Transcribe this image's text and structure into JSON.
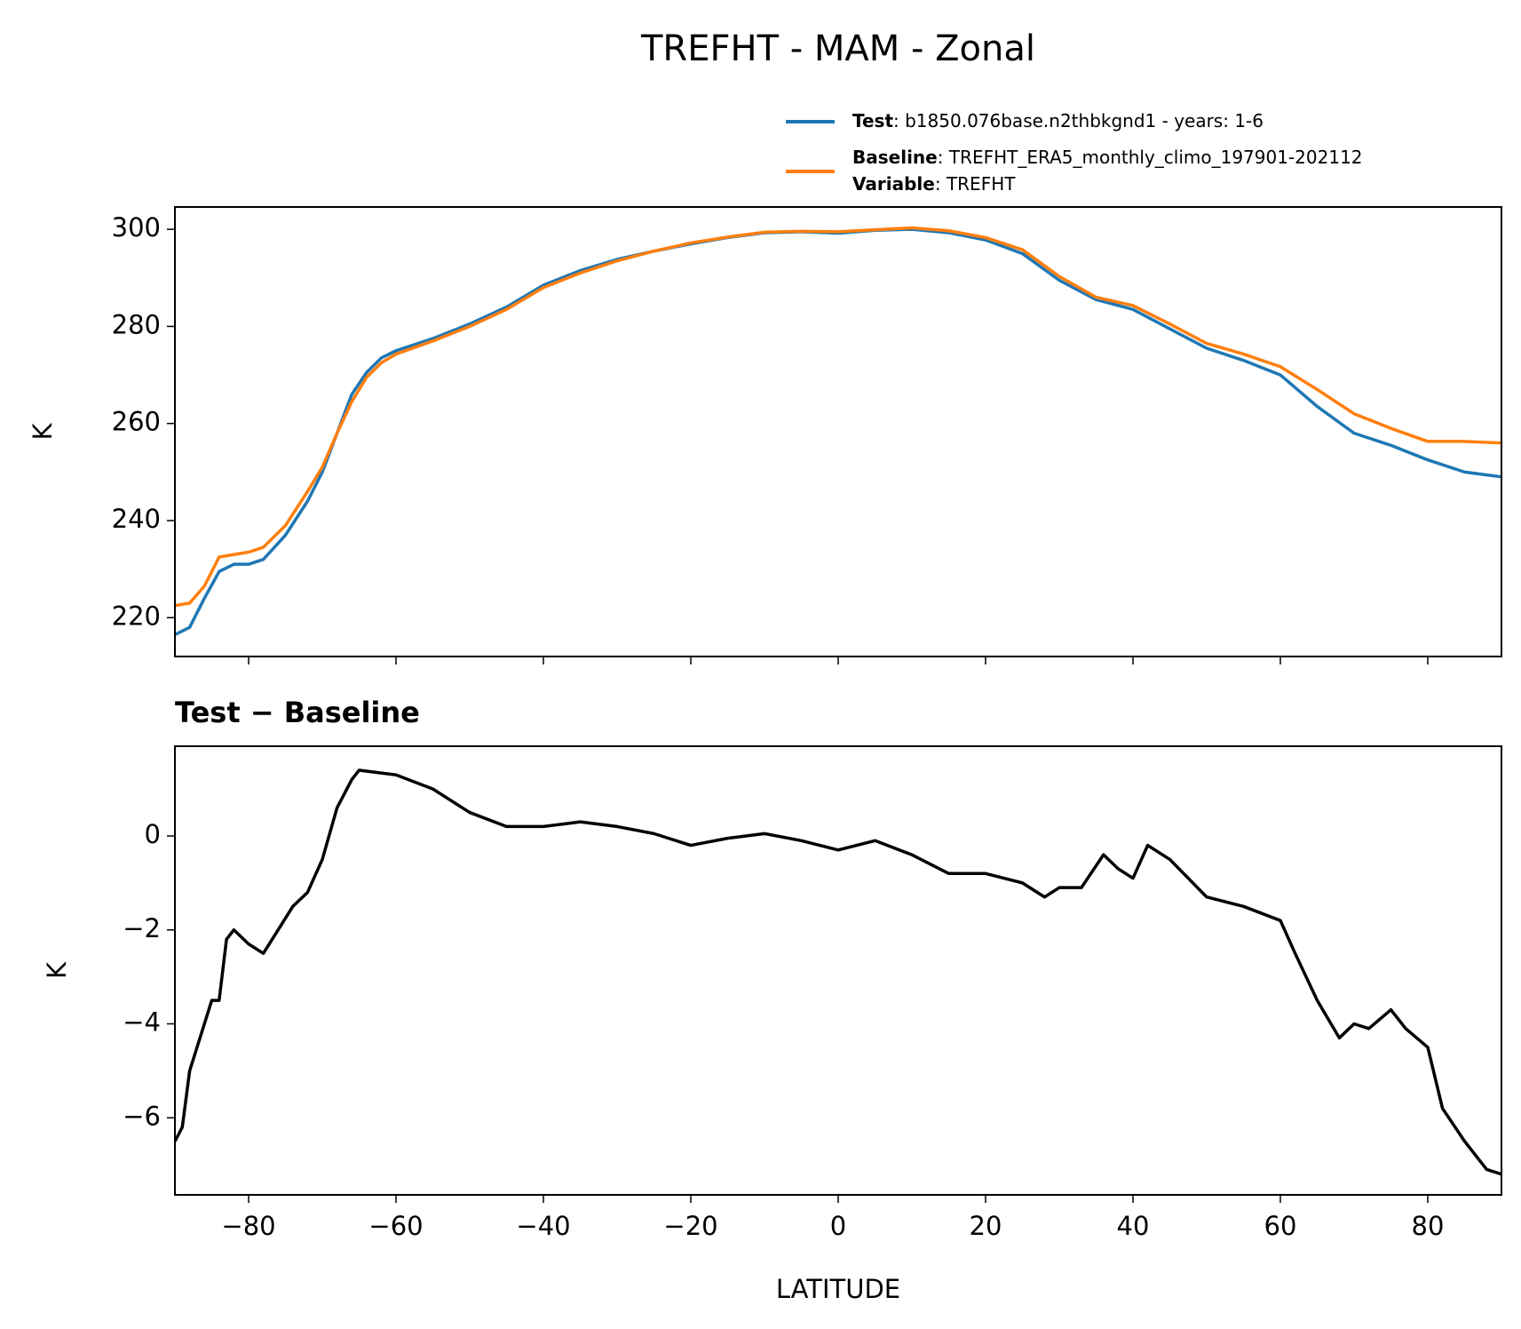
{
  "title": "TREFHT - MAM - Zonal",
  "chart_data": [
    {
      "type": "line",
      "ylabel": "K",
      "x": [
        -90,
        -88,
        -86,
        -84,
        -82,
        -80,
        -78,
        -75,
        -72,
        -70,
        -68,
        -66,
        -64,
        -62,
        -60,
        -55,
        -50,
        -45,
        -40,
        -35,
        -30,
        -25,
        -20,
        -15,
        -10,
        -5,
        0,
        5,
        10,
        15,
        20,
        25,
        30,
        35,
        40,
        45,
        50,
        55,
        60,
        65,
        70,
        75,
        80,
        85,
        90
      ],
      "series": [
        {
          "name": "Test",
          "detail": ": b1850.076base.n2thbkgnd1 - years: 1-6",
          "color": "#1f77b4",
          "values": [
            216.5,
            218,
            224,
            229.5,
            231,
            231,
            232,
            237,
            244,
            250,
            258,
            266,
            270.5,
            273.5,
            275,
            277.5,
            280.5,
            284,
            288.5,
            291.5,
            293.8,
            295.5,
            297,
            298.3,
            299.3,
            299.5,
            299.2,
            299.8,
            300,
            299.3,
            297.8,
            295,
            289.5,
            285.5,
            283.5,
            279.5,
            275.5,
            273,
            270,
            263.5,
            258,
            255.5,
            252.5,
            250,
            249
          ]
        },
        {
          "name": "Baseline",
          "detail": ": TREFHT_ERA5_monthly_climo_197901-202112",
          "color": "#ff7f0e",
          "values": [
            222.5,
            223,
            226.5,
            232.5,
            233,
            233.5,
            234.5,
            239,
            246,
            251,
            258,
            264.5,
            269.5,
            272.5,
            274.3,
            277,
            280,
            283.5,
            288,
            291,
            293.5,
            295.5,
            297.2,
            298.4,
            299.4,
            299.6,
            299.5,
            299.9,
            300.3,
            299.7,
            298.3,
            295.8,
            290.3,
            286,
            284.3,
            280.5,
            276.5,
            274.3,
            271.7,
            267,
            262,
            259,
            256.3,
            256.3,
            256
          ]
        }
      ],
      "legend_note": {
        "name": "Variable",
        "detail": ": TREFHT"
      },
      "xlim": [
        -90,
        90
      ],
      "ylim": [
        212,
        304.6
      ],
      "yticks": [
        220,
        240,
        260,
        280,
        300
      ]
    },
    {
      "type": "line",
      "title": "Test − Baseline",
      "xlabel": "LATITUDE",
      "ylabel": "K",
      "color": "#000000",
      "x": [
        -90,
        -89,
        -88,
        -86,
        -85,
        -84,
        -83,
        -82,
        -80,
        -78,
        -76,
        -74,
        -72,
        -70,
        -68,
        -66,
        -65,
        -60,
        -55,
        -50,
        -45,
        -40,
        -35,
        -30,
        -25,
        -20,
        -15,
        -10,
        -5,
        0,
        5,
        10,
        15,
        20,
        25,
        28,
        30,
        33,
        36,
        38,
        40,
        42,
        45,
        50,
        55,
        60,
        62,
        65,
        68,
        70,
        72,
        75,
        77,
        80,
        82,
        85,
        88,
        90
      ],
      "values": [
        -6.5,
        -6.2,
        -5,
        -4,
        -3.5,
        -3.5,
        -2.2,
        -2,
        -2.3,
        -2.5,
        -2,
        -1.5,
        -1.2,
        -0.5,
        0.6,
        1.2,
        1.4,
        1.3,
        1.0,
        0.5,
        0.2,
        0.2,
        0.3,
        0.2,
        0.05,
        -0.2,
        -0.05,
        0.05,
        -0.1,
        -0.3,
        -0.1,
        -0.4,
        -0.8,
        -0.8,
        -1.0,
        -1.3,
        -1.1,
        -1.1,
        -0.4,
        -0.7,
        -0.9,
        -0.2,
        -0.5,
        -1.3,
        -1.5,
        -1.8,
        -2.5,
        -3.5,
        -4.3,
        -4.0,
        -4.1,
        -3.7,
        -4.1,
        -4.5,
        -5.8,
        -6.5,
        -7.1,
        -7.2
      ],
      "xlim": [
        -90,
        90
      ],
      "ylim": [
        -7.64,
        1.91
      ],
      "xticks": [
        {
          "value": -80,
          "label": "−80"
        },
        {
          "value": -60,
          "label": "−60"
        },
        {
          "value": -40,
          "label": "−40"
        },
        {
          "value": -20,
          "label": "−20"
        },
        0,
        20,
        40,
        60,
        80
      ],
      "yticks": [
        {
          "value": -6,
          "label": "−6"
        },
        {
          "value": -4,
          "label": "−4"
        },
        {
          "value": -2,
          "label": "−2"
        },
        0
      ]
    }
  ]
}
